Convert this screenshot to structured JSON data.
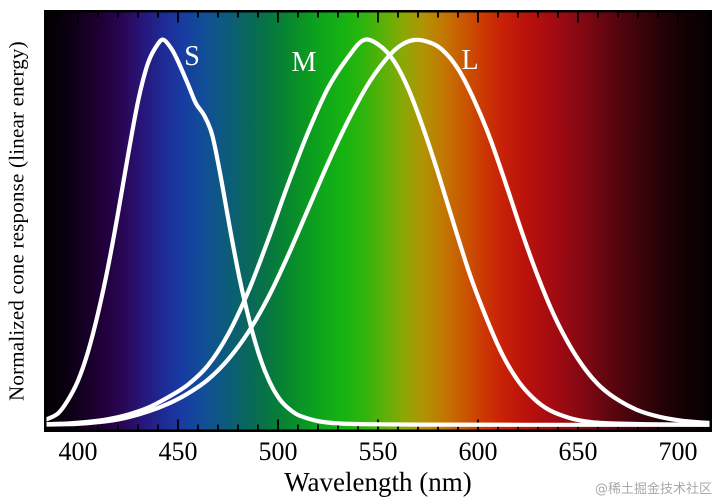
{
  "watermark": "@稀土掘金技术社区",
  "chart_data": {
    "type": "line",
    "title": "",
    "xlabel": "Wavelength (nm)",
    "ylabel": "Normalized cone response (linear energy)",
    "xlim": [
      383,
      717
    ],
    "ylim": [
      0,
      1.05
    ],
    "x_ticks_major": [
      400,
      450,
      500,
      550,
      600,
      650,
      700
    ],
    "x_minor_step": 10,
    "grid": false,
    "legend_position": "inline-labels-on-curves",
    "curve_color": "#ffffff",
    "frame_color": "#000000",
    "background": "visible-spectrum-gradient",
    "background_spectrum": [
      [
        383,
        "#000000"
      ],
      [
        393,
        "#08000d"
      ],
      [
        403,
        "#150023"
      ],
      [
        413,
        "#21003b"
      ],
      [
        423,
        "#2a0757"
      ],
      [
        433,
        "#27177c"
      ],
      [
        443,
        "#1e2b96"
      ],
      [
        453,
        "#173da2"
      ],
      [
        463,
        "#114e97"
      ],
      [
        473,
        "#0c5a7f"
      ],
      [
        483,
        "#096562"
      ],
      [
        493,
        "#077247"
      ],
      [
        503,
        "#078432"
      ],
      [
        513,
        "#0a9623"
      ],
      [
        523,
        "#0fa81a"
      ],
      [
        533,
        "#16b312"
      ],
      [
        543,
        "#2fb40d"
      ],
      [
        553,
        "#5cb108"
      ],
      [
        563,
        "#8ca805"
      ],
      [
        573,
        "#b29203"
      ],
      [
        583,
        "#c27702"
      ],
      [
        593,
        "#ca5702"
      ],
      [
        603,
        "#cc3703"
      ],
      [
        613,
        "#c72007"
      ],
      [
        623,
        "#bb130b"
      ],
      [
        633,
        "#ac0d10"
      ],
      [
        643,
        "#980a13"
      ],
      [
        653,
        "#800812"
      ],
      [
        663,
        "#670610"
      ],
      [
        673,
        "#4e040c"
      ],
      [
        683,
        "#370309"
      ],
      [
        693,
        "#230206"
      ],
      [
        703,
        "#130103"
      ],
      [
        717,
        "#060101"
      ]
    ],
    "series": [
      {
        "name": "S",
        "peak_nm": 443,
        "label": {
          "nm": 457,
          "v": 0.935
        },
        "points": [
          [
            383,
            0.012
          ],
          [
            390,
            0.03
          ],
          [
            395,
            0.065
          ],
          [
            400,
            0.115
          ],
          [
            405,
            0.19
          ],
          [
            410,
            0.29
          ],
          [
            415,
            0.41
          ],
          [
            420,
            0.55
          ],
          [
            425,
            0.7
          ],
          [
            430,
            0.84
          ],
          [
            435,
            0.94
          ],
          [
            440,
            0.99
          ],
          [
            443,
            1.0
          ],
          [
            447,
            0.975
          ],
          [
            450,
            0.945
          ],
          [
            455,
            0.885
          ],
          [
            459,
            0.835
          ],
          [
            463,
            0.805
          ],
          [
            467,
            0.755
          ],
          [
            471,
            0.655
          ],
          [
            476,
            0.51
          ],
          [
            481,
            0.375
          ],
          [
            486,
            0.265
          ],
          [
            491,
            0.175
          ],
          [
            496,
            0.11
          ],
          [
            501,
            0.066
          ],
          [
            506,
            0.04
          ],
          [
            511,
            0.024
          ],
          [
            521,
            0.009
          ],
          [
            531,
            0.004
          ],
          [
            545,
            0.002
          ],
          [
            570,
            0.001
          ],
          [
            620,
            0.0005
          ],
          [
            717,
            0.0005
          ]
        ]
      },
      {
        "name": "M",
        "peak_nm": 543,
        "label": {
          "nm": 513,
          "v": 0.92
        },
        "points": [
          [
            383,
            0.002
          ],
          [
            395,
            0.004
          ],
          [
            405,
            0.008
          ],
          [
            415,
            0.015
          ],
          [
            425,
            0.027
          ],
          [
            435,
            0.045
          ],
          [
            445,
            0.072
          ],
          [
            455,
            0.105
          ],
          [
            465,
            0.155
          ],
          [
            475,
            0.235
          ],
          [
            485,
            0.345
          ],
          [
            495,
            0.48
          ],
          [
            505,
            0.625
          ],
          [
            515,
            0.76
          ],
          [
            525,
            0.875
          ],
          [
            535,
            0.955
          ],
          [
            543,
            1.0
          ],
          [
            551,
            0.985
          ],
          [
            558,
            0.945
          ],
          [
            565,
            0.875
          ],
          [
            572,
            0.78
          ],
          [
            580,
            0.655
          ],
          [
            588,
            0.52
          ],
          [
            596,
            0.39
          ],
          [
            604,
            0.28
          ],
          [
            612,
            0.185
          ],
          [
            620,
            0.115
          ],
          [
            628,
            0.068
          ],
          [
            636,
            0.038
          ],
          [
            646,
            0.018
          ],
          [
            656,
            0.008
          ],
          [
            668,
            0.004
          ],
          [
            685,
            0.002
          ],
          [
            717,
            0.001
          ]
        ]
      },
      {
        "name": "L",
        "peak_nm": 568,
        "label": {
          "nm": 596,
          "v": 0.925
        },
        "points": [
          [
            383,
            0.001
          ],
          [
            395,
            0.002
          ],
          [
            405,
            0.005
          ],
          [
            415,
            0.01
          ],
          [
            425,
            0.02
          ],
          [
            435,
            0.035
          ],
          [
            445,
            0.055
          ],
          [
            455,
            0.082
          ],
          [
            465,
            0.118
          ],
          [
            475,
            0.17
          ],
          [
            485,
            0.24
          ],
          [
            495,
            0.33
          ],
          [
            505,
            0.44
          ],
          [
            515,
            0.56
          ],
          [
            525,
            0.68
          ],
          [
            535,
            0.79
          ],
          [
            545,
            0.885
          ],
          [
            554,
            0.95
          ],
          [
            561,
            0.985
          ],
          [
            568,
            1.0
          ],
          [
            575,
            0.995
          ],
          [
            582,
            0.975
          ],
          [
            590,
            0.925
          ],
          [
            598,
            0.845
          ],
          [
            606,
            0.745
          ],
          [
            614,
            0.625
          ],
          [
            622,
            0.5
          ],
          [
            630,
            0.385
          ],
          [
            638,
            0.285
          ],
          [
            646,
            0.205
          ],
          [
            654,
            0.142
          ],
          [
            662,
            0.096
          ],
          [
            671,
            0.062
          ],
          [
            681,
            0.036
          ],
          [
            691,
            0.021
          ],
          [
            701,
            0.012
          ],
          [
            711,
            0.007
          ],
          [
            717,
            0.005
          ]
        ]
      }
    ]
  }
}
